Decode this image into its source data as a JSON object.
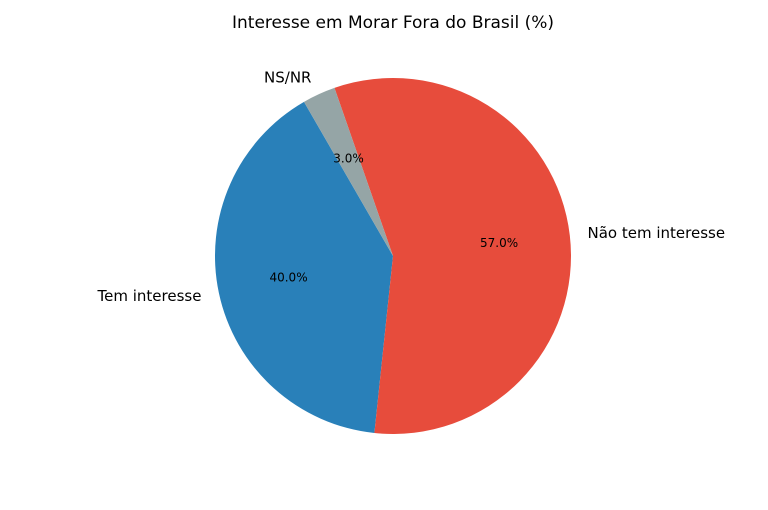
{
  "chart_data": {
    "type": "pie",
    "title": "Interesse em Morar Fora do Brasil (%)",
    "slices": [
      {
        "label": "Tem interesse",
        "value": 40.0,
        "pct_label": "40.0%",
        "color": "#2980b9"
      },
      {
        "label": "Não tem interesse",
        "value": 57.0,
        "pct_label": "57.0%",
        "color": "#e74c3c"
      },
      {
        "label": "NS/NR",
        "value": 3.0,
        "pct_label": "3.0%",
        "color": "#95a5a6"
      }
    ],
    "start_angle_deg": 120,
    "direction": "counterclockwise",
    "legend": "none"
  }
}
